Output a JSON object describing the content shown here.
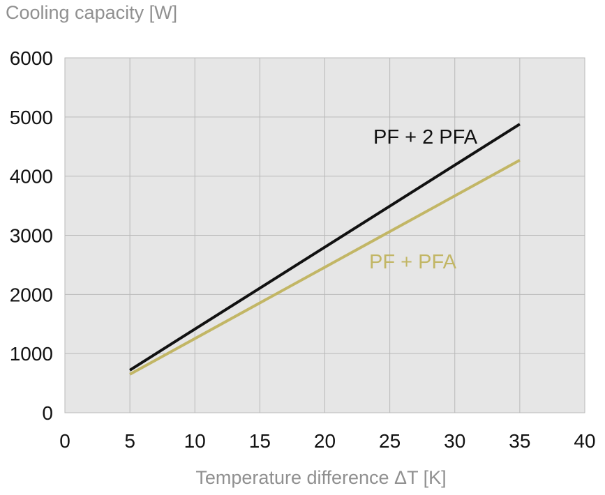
{
  "chart_data": {
    "type": "line",
    "title": "",
    "ylabel": "Cooling capacity [W]",
    "xlabel": "Temperature difference ΔT [K]",
    "xlim": [
      0,
      40
    ],
    "ylim": [
      0,
      6000
    ],
    "xticks": [
      "0",
      "5",
      "10",
      "15",
      "20",
      "25",
      "30",
      "35",
      "40"
    ],
    "yticks": [
      "0",
      "1000",
      "2000",
      "3000",
      "4000",
      "5000",
      "6000"
    ],
    "grid": true,
    "legend": "inline labels",
    "series": [
      {
        "name": "PF + 2 PFA",
        "color": "#111111",
        "x": [
          5,
          35
        ],
        "y": [
          720,
          4880
        ]
      },
      {
        "name": "PF + PFA",
        "color": "#c2b665",
        "x": [
          5,
          35
        ],
        "y": [
          650,
          4270
        ]
      }
    ]
  }
}
